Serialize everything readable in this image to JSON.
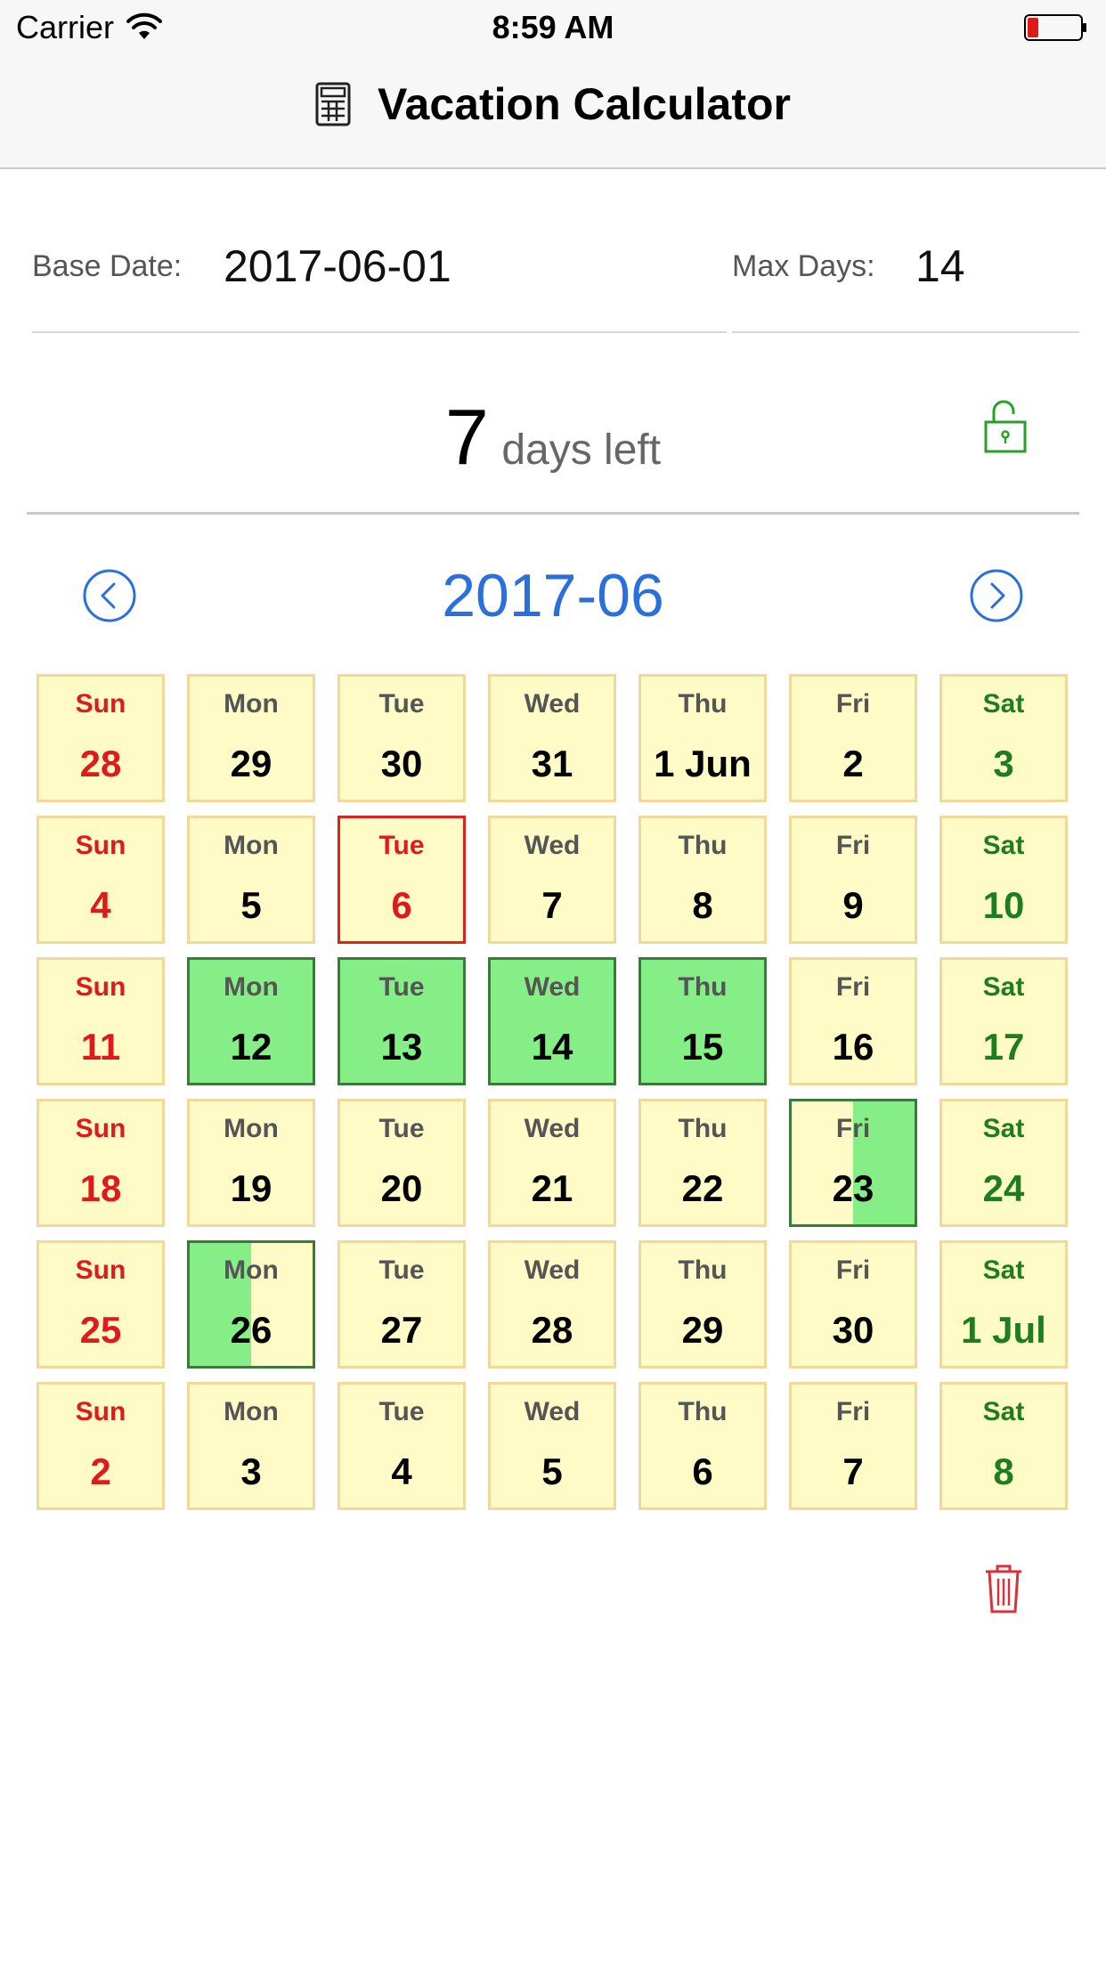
{
  "status_bar": {
    "carrier": "Carrier",
    "time": "8:59 AM"
  },
  "app": {
    "title": "Vacation Calculator",
    "title_icon": "calculator-icon"
  },
  "form": {
    "base_date_label": "Base Date:",
    "base_date_value": "2017-06-01",
    "max_days_label": "Max Days:",
    "max_days_value": "14"
  },
  "summary": {
    "days_left": "7",
    "days_left_label": "days left",
    "lock_icon": "unlock-icon"
  },
  "calendar": {
    "month_label": "2017-06",
    "prev_icon": "chevron-left-icon",
    "next_icon": "chevron-right-icon",
    "weeks": [
      [
        {
          "wd": "Sun",
          "d": "28"
        },
        {
          "wd": "Mon",
          "d": "29"
        },
        {
          "wd": "Tue",
          "d": "30"
        },
        {
          "wd": "Wed",
          "d": "31"
        },
        {
          "wd": "Thu",
          "d": "1 Jun"
        },
        {
          "wd": "Fri",
          "d": "2"
        },
        {
          "wd": "Sat",
          "d": "3"
        }
      ],
      [
        {
          "wd": "Sun",
          "d": "4"
        },
        {
          "wd": "Mon",
          "d": "5"
        },
        {
          "wd": "Tue",
          "d": "6",
          "state": "today"
        },
        {
          "wd": "Wed",
          "d": "7"
        },
        {
          "wd": "Thu",
          "d": "8"
        },
        {
          "wd": "Fri",
          "d": "9"
        },
        {
          "wd": "Sat",
          "d": "10"
        }
      ],
      [
        {
          "wd": "Sun",
          "d": "11"
        },
        {
          "wd": "Mon",
          "d": "12",
          "state": "selected"
        },
        {
          "wd": "Tue",
          "d": "13",
          "state": "selected"
        },
        {
          "wd": "Wed",
          "d": "14",
          "state": "selected"
        },
        {
          "wd": "Thu",
          "d": "15",
          "state": "selected"
        },
        {
          "wd": "Fri",
          "d": "16"
        },
        {
          "wd": "Sat",
          "d": "17"
        }
      ],
      [
        {
          "wd": "Sun",
          "d": "18"
        },
        {
          "wd": "Mon",
          "d": "19"
        },
        {
          "wd": "Tue",
          "d": "20"
        },
        {
          "wd": "Wed",
          "d": "21"
        },
        {
          "wd": "Thu",
          "d": "22"
        },
        {
          "wd": "Fri",
          "d": "23",
          "state": "half-right"
        },
        {
          "wd": "Sat",
          "d": "24"
        }
      ],
      [
        {
          "wd": "Sun",
          "d": "25"
        },
        {
          "wd": "Mon",
          "d": "26",
          "state": "half-left"
        },
        {
          "wd": "Tue",
          "d": "27"
        },
        {
          "wd": "Wed",
          "d": "28"
        },
        {
          "wd": "Thu",
          "d": "29"
        },
        {
          "wd": "Fri",
          "d": "30"
        },
        {
          "wd": "Sat",
          "d": "1 Jul"
        }
      ],
      [
        {
          "wd": "Sun",
          "d": "2"
        },
        {
          "wd": "Mon",
          "d": "3"
        },
        {
          "wd": "Tue",
          "d": "4"
        },
        {
          "wd": "Wed",
          "d": "5"
        },
        {
          "wd": "Thu",
          "d": "6"
        },
        {
          "wd": "Fri",
          "d": "7"
        },
        {
          "wd": "Sat",
          "d": "8"
        }
      ]
    ]
  },
  "actions": {
    "trash_icon": "trash-icon"
  },
  "colors": {
    "accent": "#2a6fdb",
    "cell_bg": "#fffbc7",
    "cell_border": "#f3d89a",
    "selected_bg": "#86ee86",
    "selected_border": "#3a7a3a",
    "sunday": "#e01a1a",
    "saturday": "#1e7d1e",
    "lock": "#2aa02a",
    "trash": "#d9313a"
  }
}
